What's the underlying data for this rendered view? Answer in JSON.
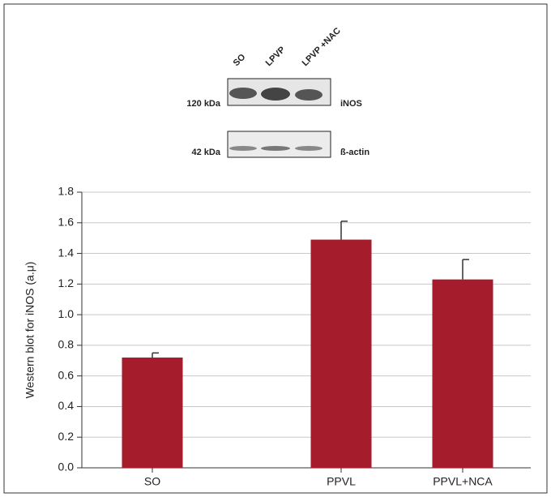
{
  "blot": {
    "lanes": [
      "SO",
      "LPVP",
      "LPVP +NAC"
    ],
    "markers": [
      "120 kDa",
      "42 kDa"
    ],
    "proteins": [
      "iNOS",
      "ß-actin"
    ]
  },
  "chart_data": {
    "type": "bar",
    "y_label": "Western blot for iNOS (a.μ)",
    "categories": [
      "SO",
      "PPVL",
      "PPVL+NCA"
    ],
    "values": [
      0.72,
      1.49,
      1.23
    ],
    "errors": [
      0.03,
      0.12,
      0.13
    ],
    "color": "#a51c2c",
    "ylim": [
      0,
      1.8
    ],
    "yticks": [
      {
        "value": 0,
        "label": "0.0"
      },
      0.2,
      0.4,
      0.6,
      0.8,
      {
        "value": 1,
        "label": "1.0"
      },
      1.2,
      1.4,
      1.6,
      1.8
    ],
    "grid": true
  }
}
